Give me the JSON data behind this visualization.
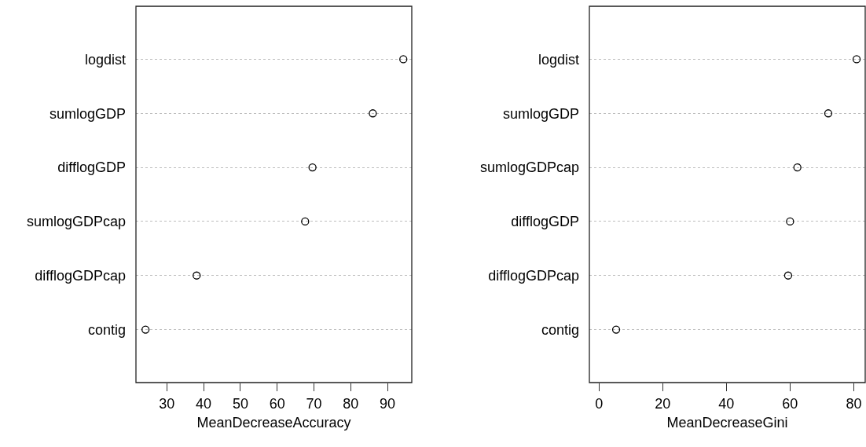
{
  "chart_data": [
    {
      "type": "scatter",
      "orientation": "horizontal",
      "categories": [
        "logdist",
        "sumlogGDP",
        "difflogGDP",
        "sumlogGDPcap",
        "difflogGDPcap",
        "contig"
      ],
      "values": [
        94.3,
        86.0,
        69.6,
        67.6,
        38.1,
        24.2
      ],
      "color": "#000000",
      "marker": "circle",
      "grid": "y",
      "xlabel": "MeanDecreaseAccuracy",
      "xlim": [
        21.6,
        96.6
      ],
      "xticks": [
        30,
        40,
        50,
        60,
        70,
        80,
        90
      ]
    },
    {
      "type": "scatter",
      "orientation": "horizontal",
      "categories": [
        "logdist",
        "sumlogGDP",
        "sumlogGDPcap",
        "difflogGDP",
        "difflogGDPcap",
        "contig"
      ],
      "values": [
        80.9,
        72.0,
        62.3,
        60.0,
        59.4,
        5.4
      ],
      "color": "#000000",
      "marker": "circle",
      "grid": "y",
      "xlabel": "MeanDecreaseGini",
      "xlim": [
        -3.0,
        83.6
      ],
      "xticks": [
        0,
        20,
        40,
        60,
        80
      ]
    }
  ]
}
